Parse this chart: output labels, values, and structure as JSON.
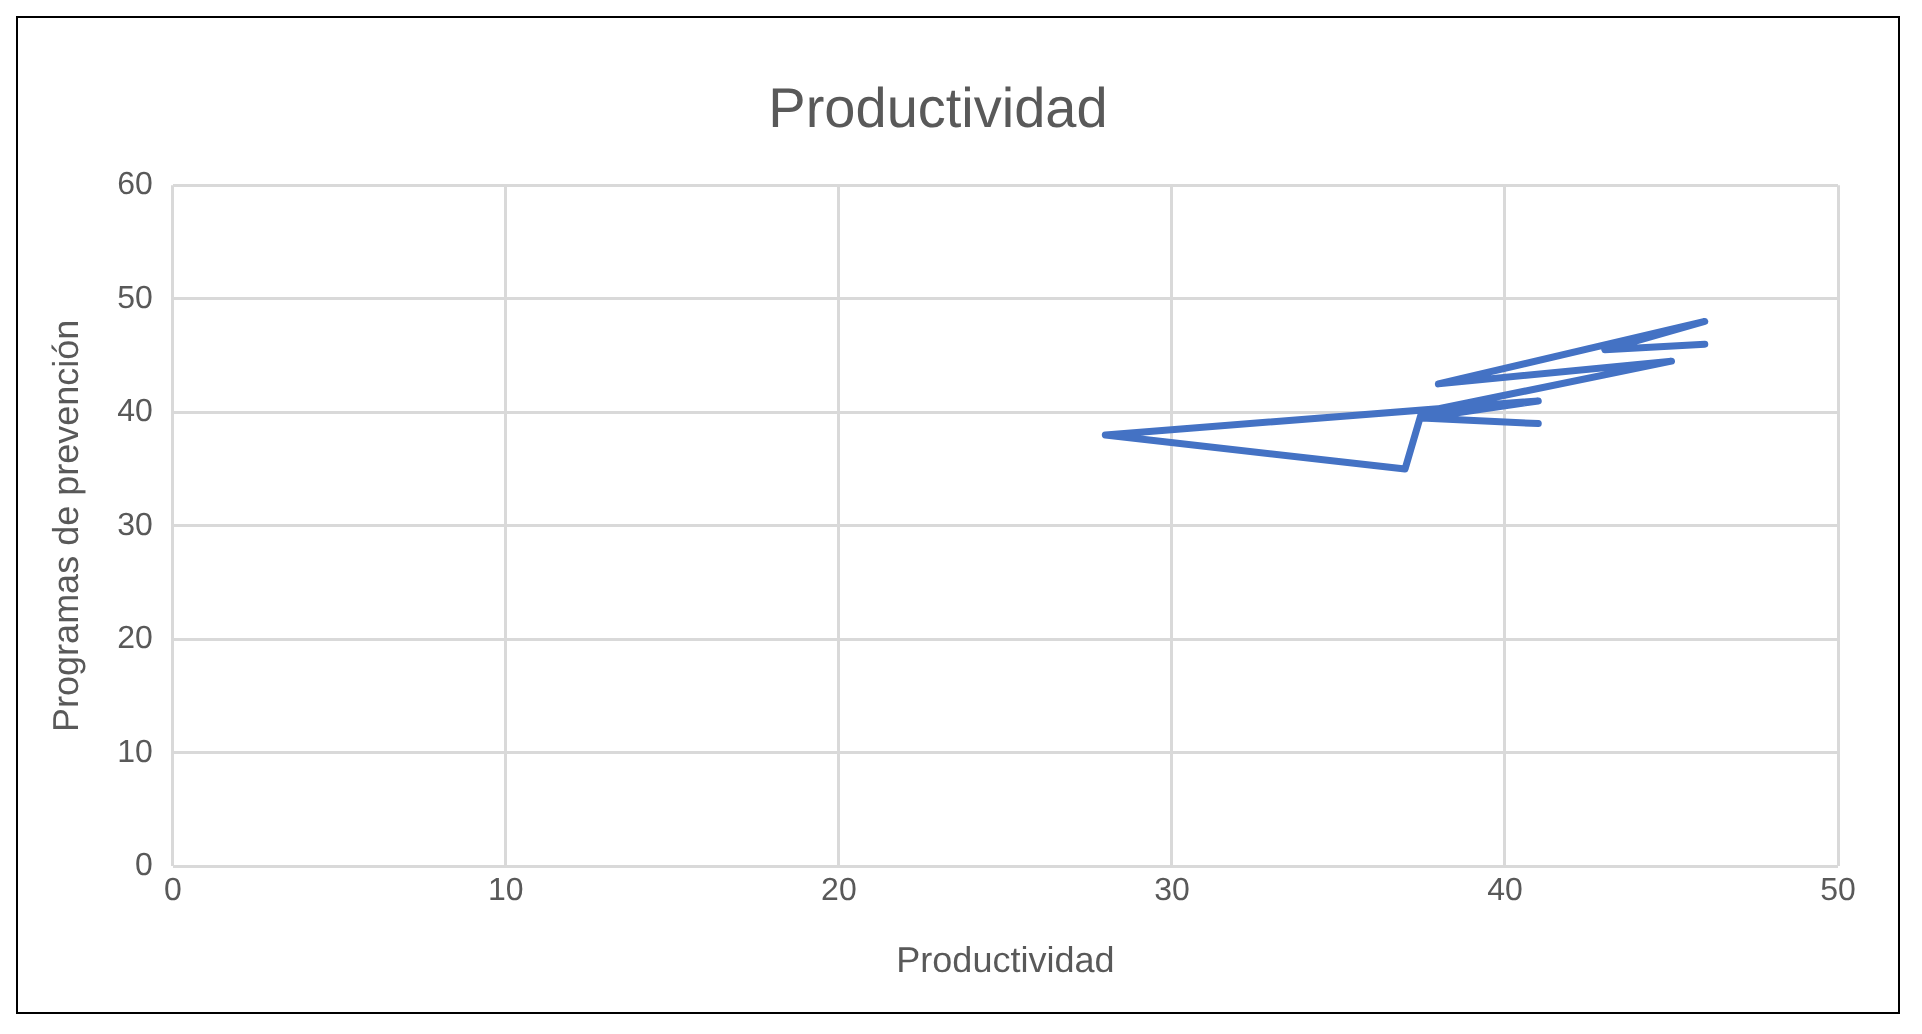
{
  "chart_data": {
    "type": "line",
    "title": "Productividad",
    "xlabel": "Productividad",
    "ylabel": "Programas de prevención",
    "x": [
      41,
      37.5,
      41,
      28,
      37,
      37.5,
      45,
      38,
      46,
      43,
      46
    ],
    "series": [
      {
        "color": "#4472c4",
        "values": [
          39,
          39.5,
          41,
          38,
          35,
          40,
          44.5,
          42.5,
          48,
          45.5,
          46
        ]
      }
    ],
    "xlim": [
      0,
      50
    ],
    "xticks": [
      0,
      10,
      20,
      30,
      40,
      50
    ],
    "ylim": [
      0,
      60
    ],
    "yticks": [
      0,
      10,
      20,
      30,
      40,
      50,
      60
    ],
    "grid": true,
    "legend": false,
    "marker": "none",
    "line_style": "solid"
  }
}
